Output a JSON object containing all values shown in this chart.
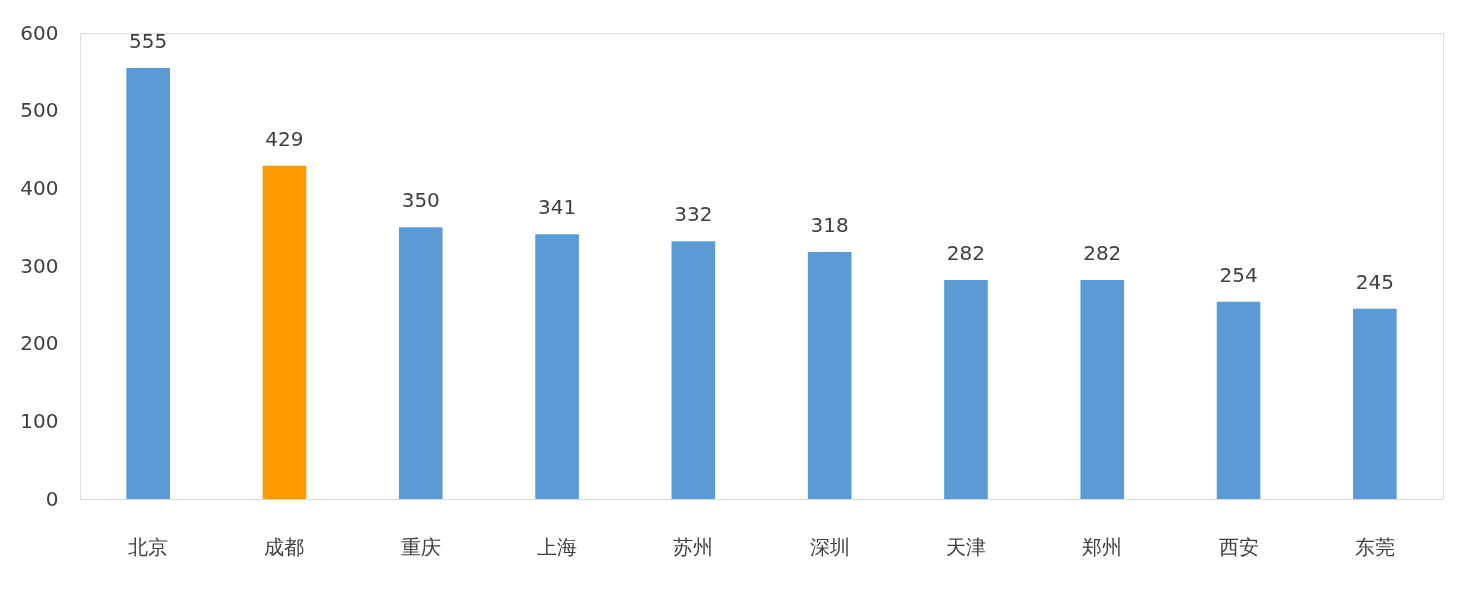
{
  "chart_data": {
    "type": "bar",
    "categories": [
      "北京",
      "成都",
      "重庆",
      "上海",
      "苏州",
      "深圳",
      "天津",
      "郑州",
      "西安",
      "东莞"
    ],
    "values": [
      555,
      429,
      350,
      341,
      332,
      318,
      282,
      282,
      254,
      245
    ],
    "colors": [
      "#5b9bd5",
      "#ff9900",
      "#5b9bd5",
      "#5b9bd5",
      "#5b9bd5",
      "#5b9bd5",
      "#5b9bd5",
      "#5b9bd5",
      "#5b9bd5",
      "#5b9bd5"
    ],
    "ylim": [
      0,
      600
    ],
    "yticks": [
      0,
      100,
      200,
      300,
      400,
      500,
      600
    ],
    "grid": false,
    "data_labels": true
  }
}
